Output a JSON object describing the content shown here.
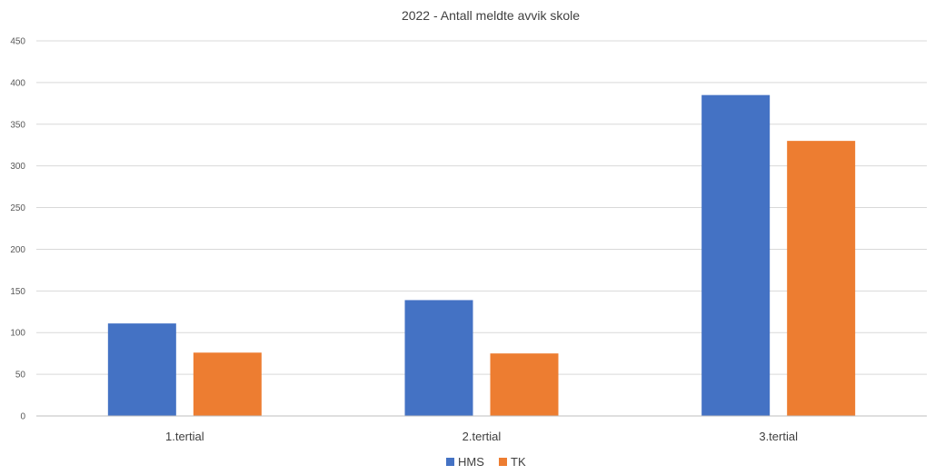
{
  "chart_data": {
    "type": "bar",
    "title": "2022 - Antall meldte avvik skole",
    "xlabel": "",
    "ylabel": "",
    "categories": [
      "1.tertial",
      "2.tertial",
      "3.tertial"
    ],
    "series": [
      {
        "name": "HMS",
        "color": "#4472C4",
        "values": [
          111,
          139,
          385
        ]
      },
      {
        "name": "TK",
        "color": "#ED7D31",
        "values": [
          76,
          75,
          330
        ]
      }
    ],
    "ylim": [
      0,
      450
    ],
    "yticks": [
      0,
      50,
      100,
      150,
      200,
      250,
      300,
      350,
      400,
      450
    ],
    "grid": true,
    "legend_position": "bottom"
  }
}
